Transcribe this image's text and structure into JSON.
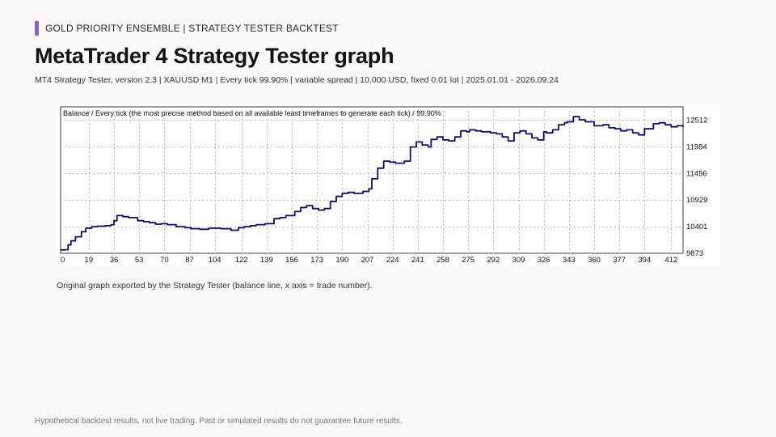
{
  "header": {
    "kicker": "GOLD PRIORITY ENSEMBLE  |  STRATEGY TESTER BACKTEST",
    "title": "MetaTrader 4 Strategy Tester graph",
    "subtitle": "MT4 Strategy Tester, version 2.3  |  XAUUSD M1  |  Every tick 99.90%  |  variable spread  |  10,000 USD, fixed 0.01 lot  |  2025.01.01 - 2026.09.24"
  },
  "caption": "Original graph exported by the Strategy Tester (balance line, x axis = trade number).",
  "footer": "Hypothetical backtest results, not live trading. Past or simulated results do not guarantee future results.",
  "colors": {
    "accent": "#8a5cd6",
    "line": "#0a0a7a",
    "grid": "#b8b8b8"
  },
  "chart_data": {
    "type": "line",
    "title": "Balance / Every tick (the most precise method based on all available least timeframes to generate each tick)  /  99.90%",
    "xlim": [
      0,
      420
    ],
    "ylim": [
      9873,
      12776
    ],
    "x_ticks": [
      0,
      19,
      36,
      53,
      70,
      87,
      104,
      122,
      139,
      156,
      173,
      190,
      207,
      224,
      241,
      258,
      275,
      292,
      309,
      326,
      343,
      360,
      377,
      394,
      412
    ],
    "y_ticks": [
      9873,
      10401,
      10929,
      11456,
      11984,
      12512
    ],
    "grid": true,
    "series": [
      {
        "x": [
          0,
          3,
          5,
          7,
          10,
          14,
          17,
          21,
          25,
          30,
          34,
          36,
          38,
          42,
          46,
          52,
          56,
          60,
          64,
          68,
          72,
          78,
          84,
          88,
          94,
          100,
          108,
          115,
          120,
          124,
          128,
          132,
          138,
          144,
          148,
          152,
          158,
          162,
          166,
          170,
          174,
          178,
          182,
          186,
          190,
          194,
          198,
          204,
          208,
          210,
          214,
          218,
          222,
          226,
          232,
          236,
          240,
          244,
          248,
          250,
          254,
          258,
          262,
          266,
          270,
          274,
          276,
          280,
          284,
          290,
          294,
          298,
          302,
          306,
          310,
          314,
          318,
          322,
          326,
          328,
          332,
          336,
          340,
          342,
          346,
          350,
          354,
          360,
          366,
          370,
          374,
          378,
          382,
          386,
          390,
          394,
          400,
          404,
          408,
          412,
          416,
          420
        ],
        "y": [
          9940,
          9945,
          10040,
          10120,
          10200,
          10300,
          10370,
          10400,
          10410,
          10420,
          10440,
          10520,
          10620,
          10600,
          10580,
          10520,
          10500,
          10480,
          10450,
          10460,
          10440,
          10400,
          10380,
          10360,
          10350,
          10370,
          10360,
          10330,
          10380,
          10400,
          10420,
          10440,
          10460,
          10560,
          10580,
          10620,
          10700,
          10780,
          10820,
          10760,
          10730,
          10760,
          10900,
          11000,
          11060,
          11080,
          11060,
          11100,
          11150,
          11350,
          11560,
          11700,
          11680,
          11660,
          11700,
          11980,
          12080,
          12020,
          11980,
          12130,
          12180,
          12120,
          12100,
          12180,
          12300,
          12280,
          12320,
          12300,
          12280,
          12260,
          12240,
          12180,
          12100,
          12260,
          12300,
          12240,
          12160,
          12120,
          12280,
          12260,
          12320,
          12420,
          12460,
          12480,
          12580,
          12520,
          12480,
          12400,
          12420,
          12360,
          12340,
          12300,
          12320,
          12260,
          12220,
          12340,
          12440,
          12460,
          12420,
          12380,
          12400,
          12380
        ]
      }
    ]
  }
}
